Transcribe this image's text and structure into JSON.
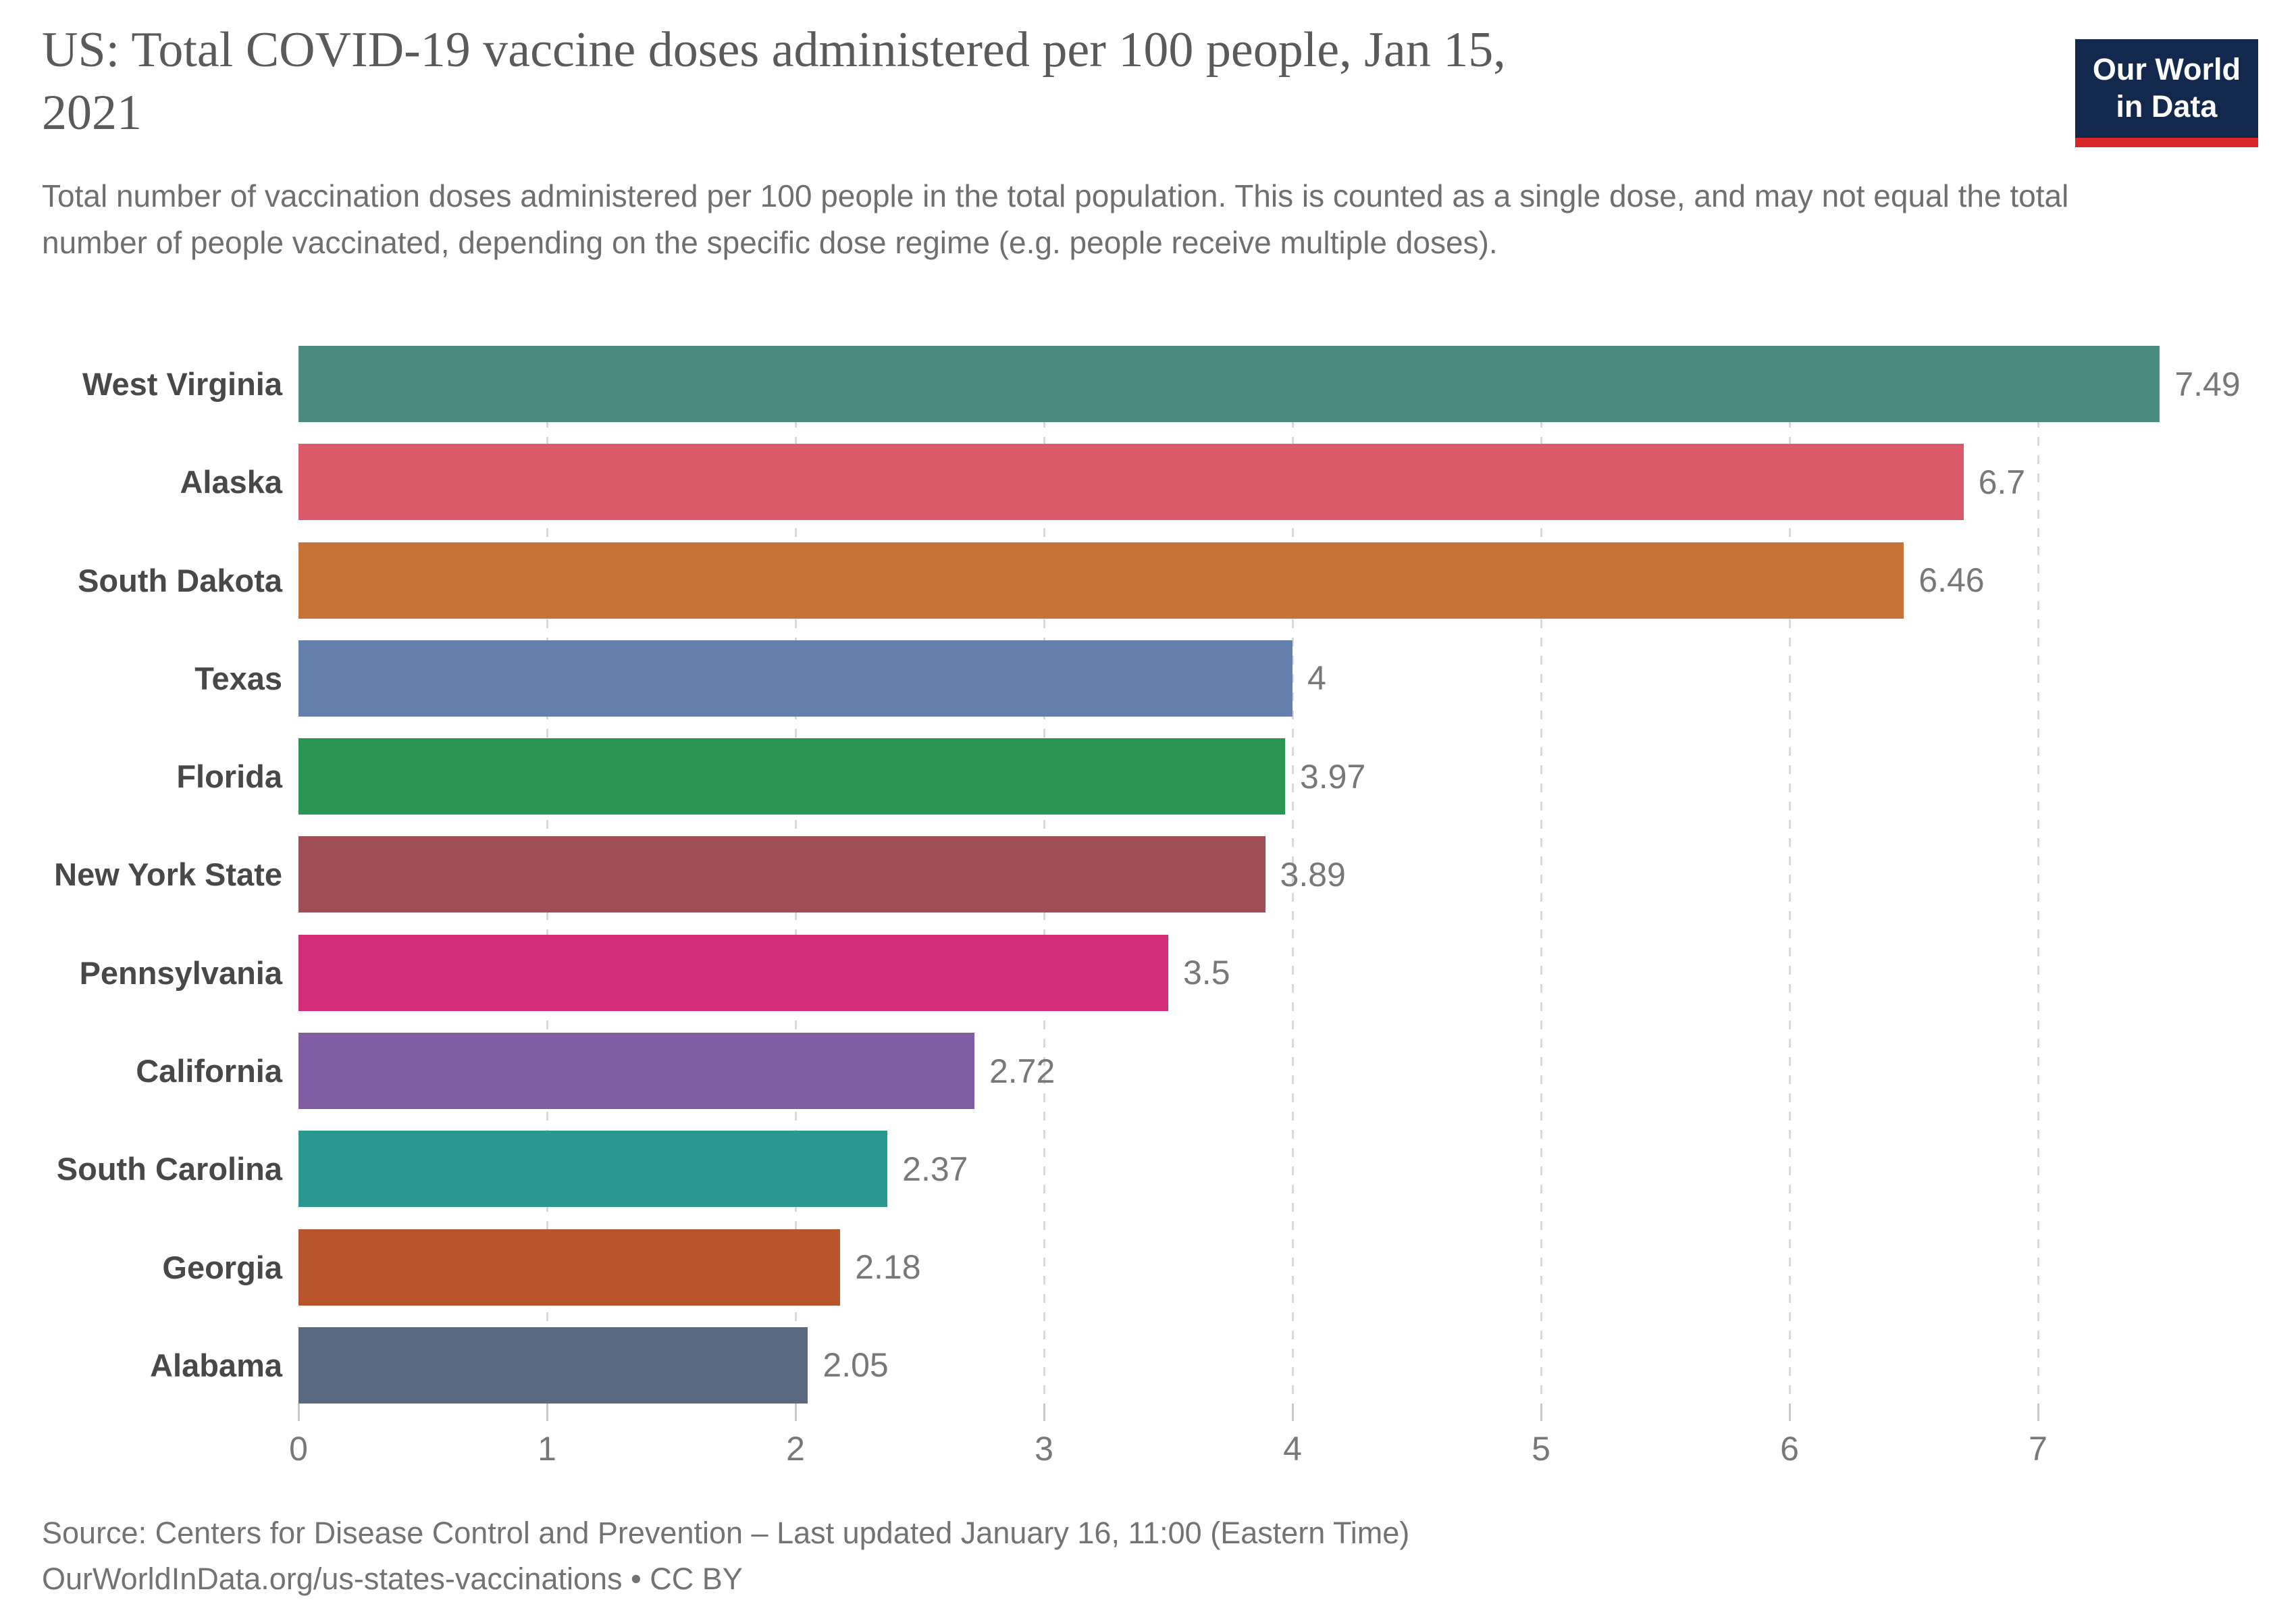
{
  "header": {
    "title": "US: Total COVID-19 vaccine doses administered per 100 people, Jan 15,\n2021",
    "subtitle": "Total number of vaccination doses administered per 100 people in the total population. This is counted as a single dose, and may not equal the total number of people vaccinated, depending on the specific dose regime (e.g. people receive multiple doses)."
  },
  "logo": {
    "line1": "Our World",
    "line2": "in Data",
    "background_color": "#12284D",
    "accent_color": "#D82629"
  },
  "chart_data": {
    "type": "bar",
    "orientation": "horizontal",
    "title": "US: Total COVID-19 vaccine doses administered per 100 people, Jan 15, 2021",
    "xlabel": "",
    "ylabel": "",
    "categories": [
      "West Virginia",
      "Alaska",
      "South Dakota",
      "Texas",
      "Florida",
      "New York State",
      "Pennsylvania",
      "California",
      "South Carolina",
      "Georgia",
      "Alabama"
    ],
    "values": [
      7.49,
      6.7,
      6.46,
      4,
      3.97,
      3.89,
      3.5,
      2.72,
      2.37,
      2.18,
      2.05
    ],
    "value_labels": [
      "7.49",
      "6.7",
      "6.46",
      "4",
      "3.97",
      "3.89",
      "3.5",
      "2.72",
      "2.37",
      "2.18",
      "2.05"
    ],
    "bar_colors": [
      "#4C8C80",
      "#DB5A6A",
      "#C77338",
      "#6580AC",
      "#2B9555",
      "#A04E55",
      "#D42E7B",
      "#805CA3",
      "#2A9891",
      "#B9552C",
      "#5A6880"
    ],
    "xlim": [
      0,
      7.9
    ],
    "x_ticks": [
      0,
      1,
      2,
      3,
      4,
      5,
      6,
      7
    ],
    "grid": "dashed-vertical",
    "legend": false,
    "label_color": "#484848",
    "value_color": "#787878"
  },
  "footer": {
    "source_line": "Source: Centers for Disease Control and Prevention – Last updated January 16, 11:00 (Eastern Time)",
    "link_line": "OurWorldInData.org/us-states-vaccinations • CC BY"
  }
}
